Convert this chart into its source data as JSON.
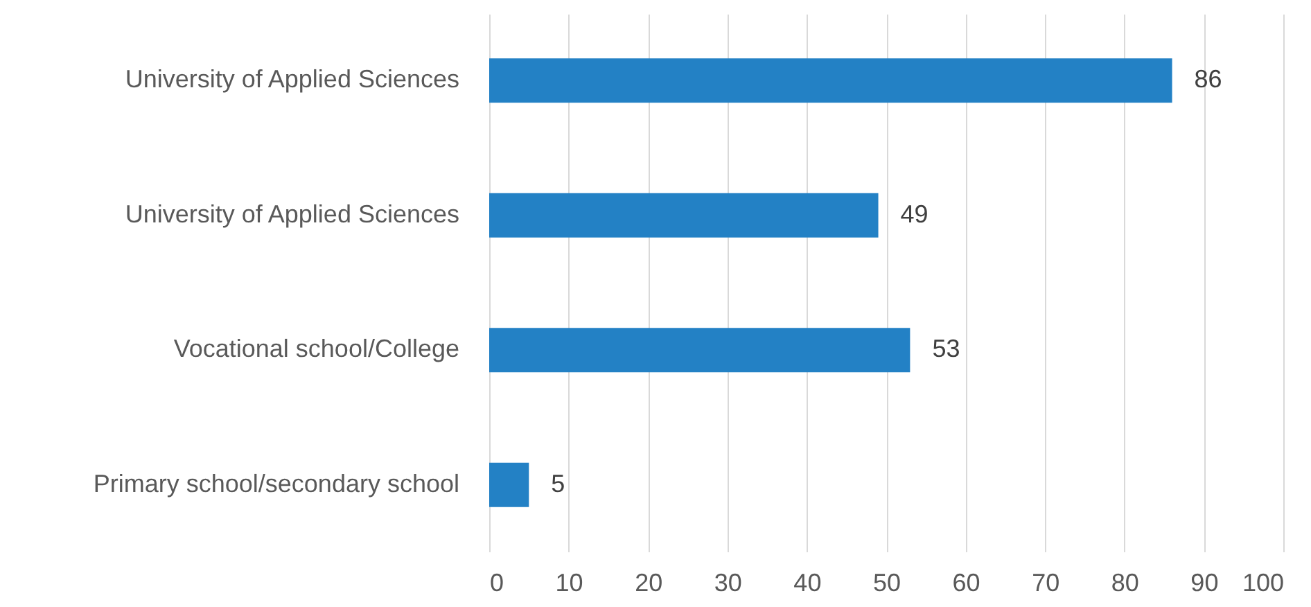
{
  "chart_data": {
    "type": "bar",
    "orientation": "horizontal",
    "categories": [
      "University of Applied Sciences",
      "University of Applied Sciences",
      "Vocational school/College",
      "Primary school/secondary school"
    ],
    "values": [
      86,
      49,
      53,
      5
    ],
    "color": "#2381c5",
    "xlim": [
      0,
      100
    ],
    "xticks": [
      0,
      10,
      20,
      30,
      40,
      50,
      60,
      70,
      80,
      90,
      100
    ],
    "grid": "x",
    "data_labels": true
  }
}
